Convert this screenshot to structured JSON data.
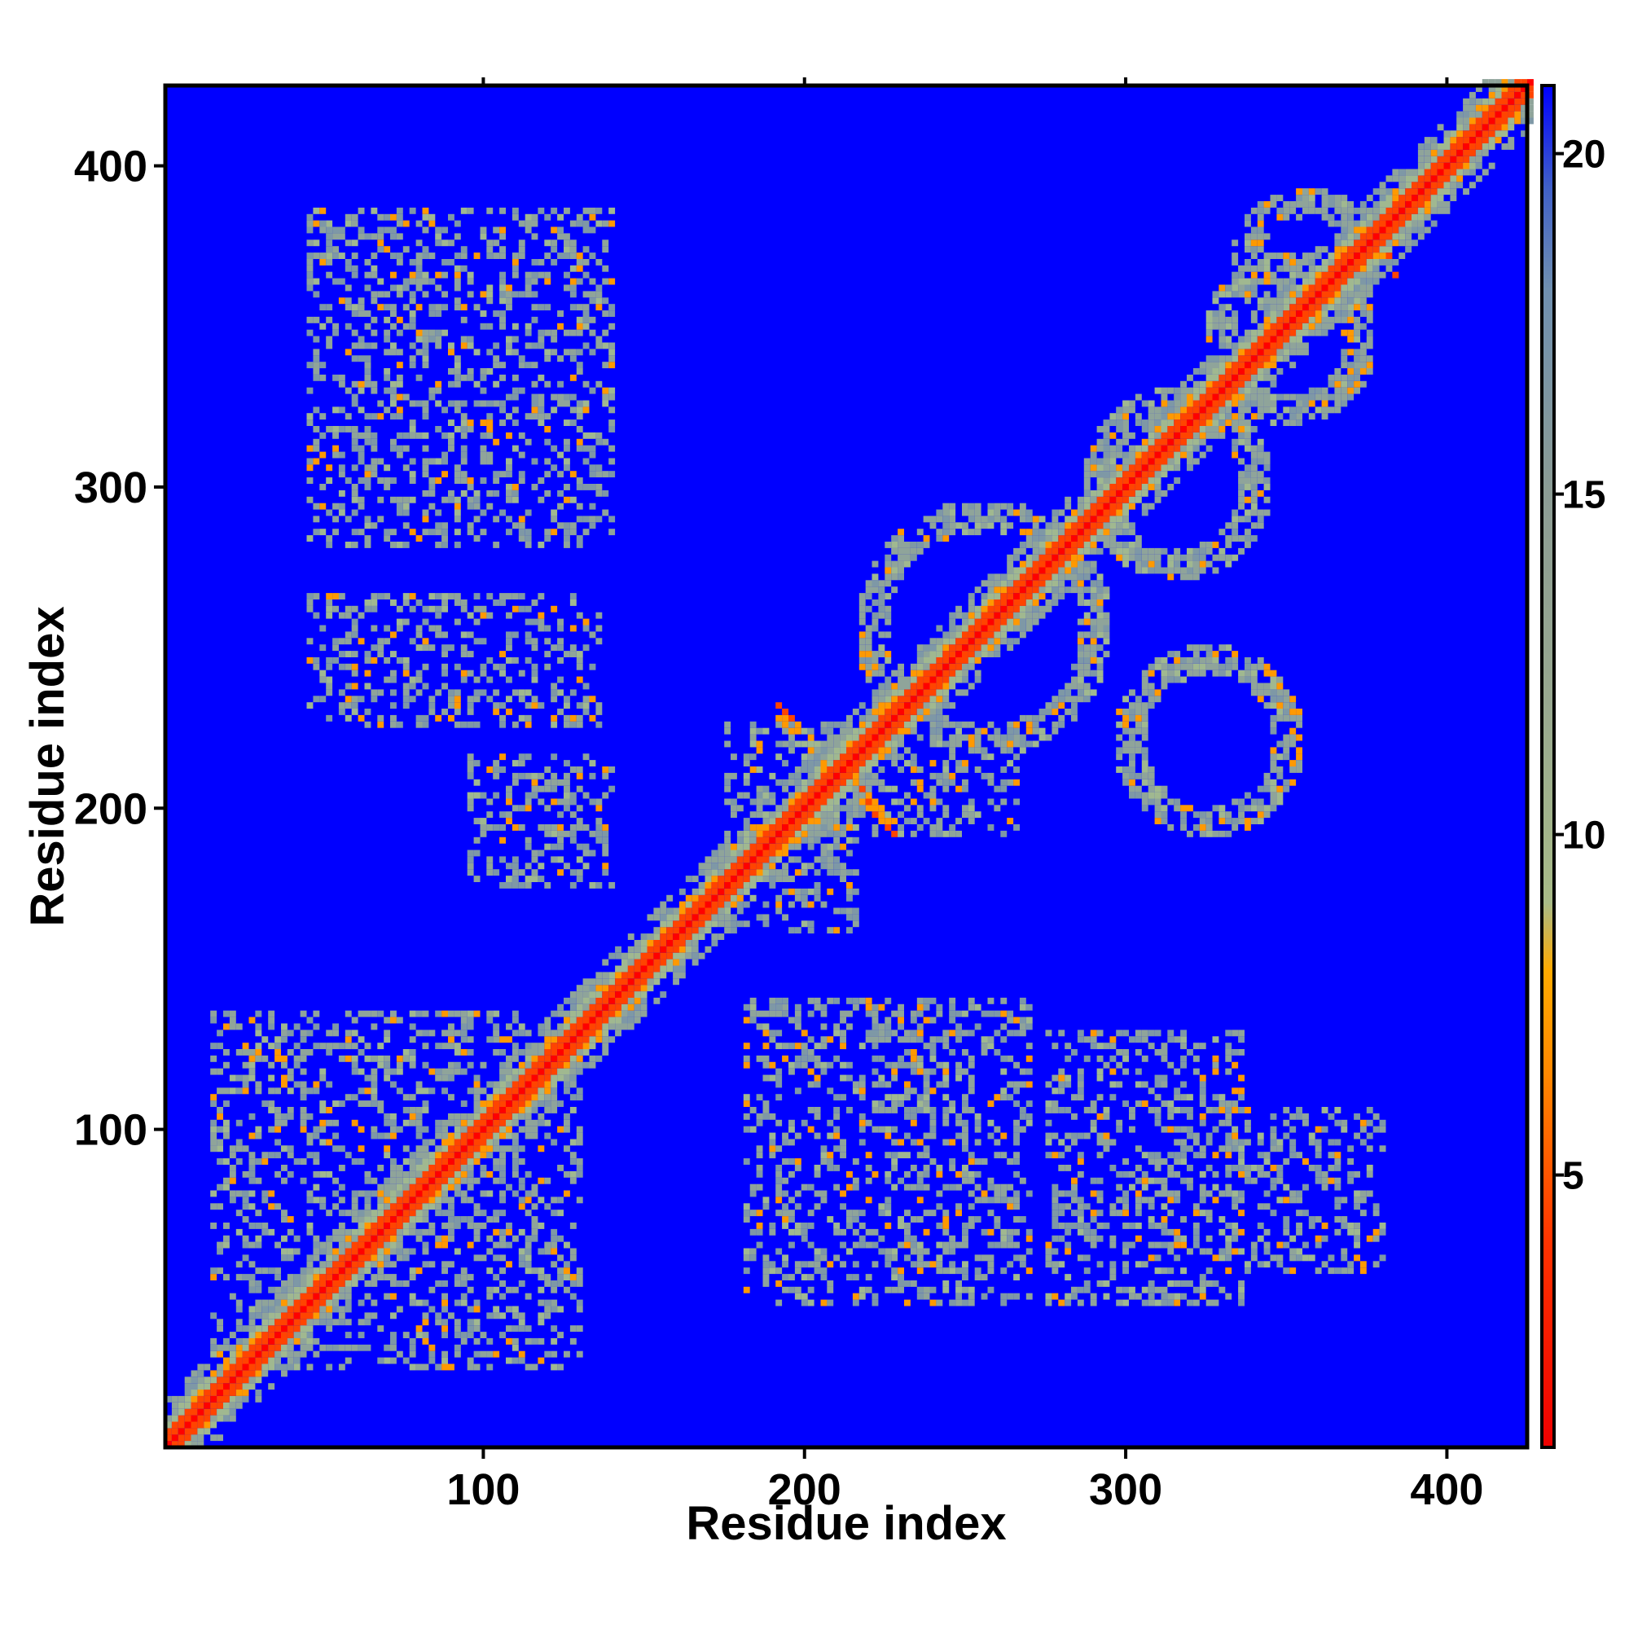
{
  "chart_data": {
    "type": "heatmap",
    "title": "",
    "xlabel": "Residue index",
    "ylabel": "Residue index",
    "xlim": [
      1,
      425
    ],
    "ylim": [
      1,
      425
    ],
    "x_ticks": [
      {
        "value": 100,
        "label": "100"
      },
      {
        "value": 200,
        "label": "200"
      },
      {
        "value": 300,
        "label": "300"
      },
      {
        "value": 400,
        "label": "400"
      }
    ],
    "y_ticks": [
      {
        "value": 100,
        "label": "100"
      },
      {
        "value": 200,
        "label": "200"
      },
      {
        "value": 300,
        "label": "300"
      },
      {
        "value": 400,
        "label": "400"
      }
    ],
    "colorbar": {
      "range": [
        1,
        21
      ],
      "ticks": [
        {
          "value": 5,
          "label": "5"
        },
        {
          "value": 10,
          "label": "10"
        },
        {
          "value": 15,
          "label": "15"
        },
        {
          "value": 20,
          "label": "20"
        }
      ],
      "stops": [
        {
          "value": 1,
          "color": "#ee0000"
        },
        {
          "value": 4,
          "color": "#ff3300"
        },
        {
          "value": 6.5,
          "color": "#ff8800"
        },
        {
          "value": 8,
          "color": "#ffaa00"
        },
        {
          "value": 9,
          "color": "#a8bb88"
        },
        {
          "value": 12,
          "color": "#98a890"
        },
        {
          "value": 15,
          "color": "#8c9c94"
        },
        {
          "value": 18,
          "color": "#7090b0"
        },
        {
          "value": 19.5,
          "color": "#4060c8"
        },
        {
          "value": 21,
          "color": "#0000ff"
        }
      ]
    },
    "background_color": "#0000ff",
    "diagonal": {
      "from": 1,
      "to": 425
    },
    "contact_patterns": [
      {
        "kind": "blob",
        "x": [
          15,
          130
        ],
        "y": [
          25,
          135
        ]
      },
      {
        "kind": "blob",
        "x": [
          175,
          215
        ],
        "y": [
          160,
          225
        ]
      },
      {
        "kind": "ring",
        "cx": 255,
        "cy": 255,
        "r": 35
      },
      {
        "kind": "ring",
        "cx": 325,
        "cy": 220,
        "r": 25
      },
      {
        "kind": "ring",
        "cx": 315,
        "cy": 300,
        "r": 25
      },
      {
        "kind": "ring",
        "cx": 350,
        "cy": 345,
        "r": 22
      },
      {
        "kind": "ring",
        "cx": 355,
        "cy": 370,
        "r": 18
      },
      {
        "kind": "cross",
        "cx": 375,
        "cy": 375,
        "r": 10
      },
      {
        "kind": "cross",
        "cx": 210,
        "cy": 210,
        "r": 20
      },
      {
        "kind": "blob",
        "x": [
          45,
          140
        ],
        "y": [
          280,
          385
        ]
      },
      {
        "kind": "blob",
        "x": [
          45,
          135
        ],
        "y": [
          225,
          265
        ]
      },
      {
        "kind": "blob",
        "x": [
          95,
          140
        ],
        "y": [
          175,
          215
        ]
      },
      {
        "kind": "blob",
        "x": [
          180,
          270
        ],
        "y": [
          45,
          140
        ]
      },
      {
        "kind": "blob",
        "x": [
          275,
          335
        ],
        "y": [
          45,
          130
        ]
      },
      {
        "kind": "blob",
        "x": [
          330,
          380
        ],
        "y": [
          55,
          105
        ]
      },
      {
        "kind": "blob",
        "x": [
          200,
          265
        ],
        "y": [
          190,
          215
        ]
      }
    ]
  }
}
